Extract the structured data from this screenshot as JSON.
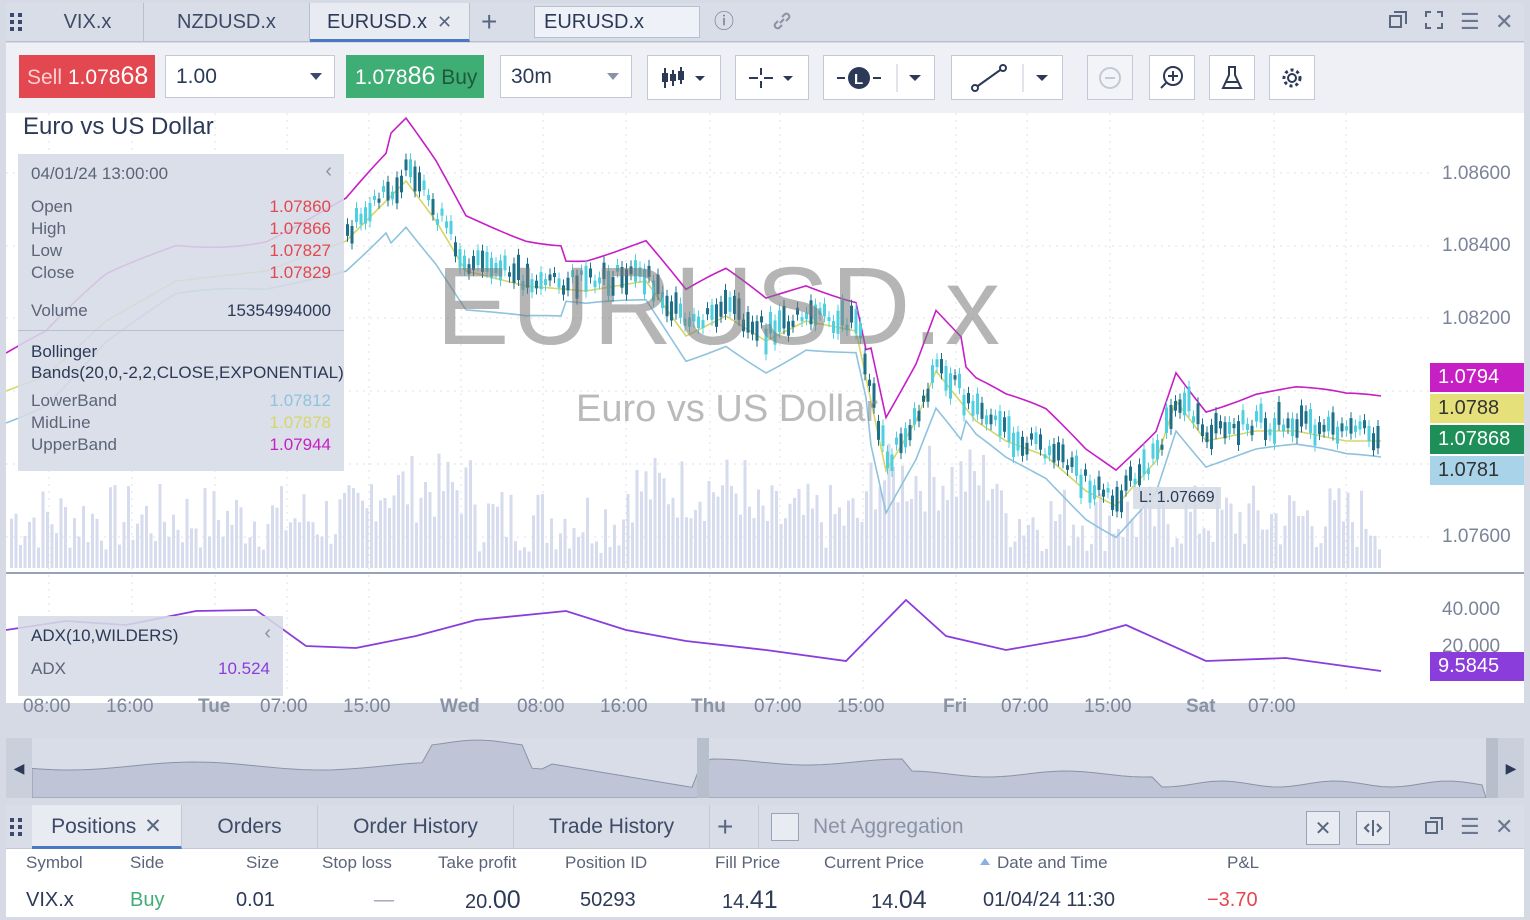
{
  "tabs": [
    {
      "label": "VIX.x"
    },
    {
      "label": "NZDUSD.x"
    },
    {
      "label": "EURUSD.x",
      "active": true
    }
  ],
  "symbol_input": "EURUSD.x",
  "toolbar": {
    "sell_label": "Sell",
    "sell_price_prefix": "1.078",
    "sell_price_big": "68",
    "quantity": "1.00",
    "buy_price_prefix": "1.078",
    "buy_price_big": "86",
    "buy_label": "Buy",
    "interval": "30m"
  },
  "chart": {
    "title": "Euro vs US Dollar",
    "watermark_symbol": "EURUSD.x",
    "watermark_name": "Euro vs US Dollar",
    "low_marker": "L: 1.07669",
    "info": {
      "datetime": "04/01/24 13:00:00",
      "open_label": "Open",
      "open": "1.07860",
      "high_label": "High",
      "high": "1.07866",
      "low_label": "Low",
      "low": "1.07827",
      "close_label": "Close",
      "close": "1.07829",
      "volume_label": "Volume",
      "volume": "15354994000",
      "indicator_name": "Bollinger Bands(20,0,-2,2,CLOSE,EXPONENTIAL)",
      "lower_label": "LowerBand",
      "lower": "1.07812",
      "mid_label": "MidLine",
      "mid": "1.07878",
      "upper_label": "UpperBand",
      "upper": "1.07944"
    },
    "price_axis": [
      "1.08600",
      "1.08400",
      "1.08200",
      "1.07600"
    ],
    "price_tags": {
      "upper": "1.0794",
      "mid": "1.0788",
      "last": "1.07868",
      "lower": "1.0781"
    },
    "adx": {
      "name": "ADX(10,WILDERS)",
      "label": "ADX",
      "value": "10.524",
      "axis": [
        "40.000",
        "20.000"
      ],
      "tag": "9.5845"
    },
    "time_axis": [
      "08:00",
      "16:00",
      "Tue",
      "07:00",
      "15:00",
      "Wed",
      "08:00",
      "16:00",
      "Thu",
      "07:00",
      "15:00",
      "Fri",
      "07:00",
      "15:00",
      "Sat",
      "07:00"
    ]
  },
  "colors": {
    "sell": "#e3474f",
    "buy": "#3fae75",
    "upper_band": "#c61fc4",
    "mid_band": "#d6d66a",
    "lower_band": "#8fc3dd",
    "candle": "#27a0b8",
    "adx_line": "#8a3ddb"
  },
  "positions_panel": {
    "tabs": [
      "Positions",
      "Orders",
      "Order History",
      "Trade History"
    ],
    "net_aggregation": "Net Aggregation",
    "columns": [
      "Symbol",
      "Side",
      "Size",
      "Stop loss",
      "Take profit",
      "Position ID",
      "Fill Price",
      "Current Price",
      "Date and Time",
      "P&L"
    ],
    "rows": [
      {
        "symbol": "VIX.x",
        "side": "Buy",
        "size": "0.01",
        "stop_loss": "—",
        "take_profit_prefix": "20.",
        "take_profit_big": "00",
        "position_id": "50293",
        "fill_prefix": "14.",
        "fill_big": "41",
        "current_prefix": "14.",
        "current_big": "04",
        "datetime": "01/04/24 11:30",
        "pnl": "−3.70"
      }
    ]
  }
}
